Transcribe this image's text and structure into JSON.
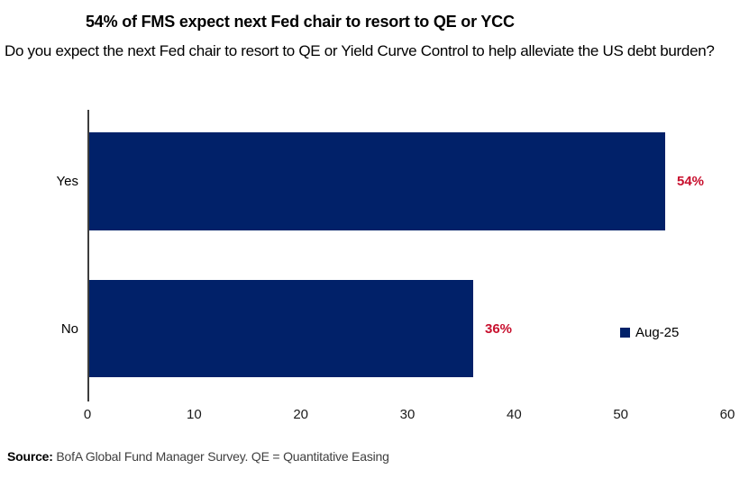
{
  "chart_data": {
    "type": "bar",
    "orientation": "horizontal",
    "title": "54% of FMS expect next Fed chair to resort to QE or YCC",
    "subtitle": "Do you expect the next Fed chair to resort to QE or Yield Curve Control to help alleviate the US debt burden?",
    "categories": [
      "Yes",
      "No"
    ],
    "series": [
      {
        "name": "Aug-25",
        "values": [
          54,
          36
        ]
      }
    ],
    "value_labels": [
      "54%",
      "36%"
    ],
    "xlabel": "",
    "ylabel": "",
    "xlim": [
      0,
      60
    ],
    "x_ticks": [
      0,
      10,
      20,
      30,
      40,
      50,
      60
    ],
    "grid": false,
    "legend_position": "right-of-no-bar",
    "colors": {
      "bar": "#012169",
      "value_label": "#C8102E",
      "axis": "#3d3d3d"
    }
  },
  "source": {
    "prefix": "Source:",
    "text": " BofA Global Fund Manager Survey. QE = Quantitative Easing"
  }
}
